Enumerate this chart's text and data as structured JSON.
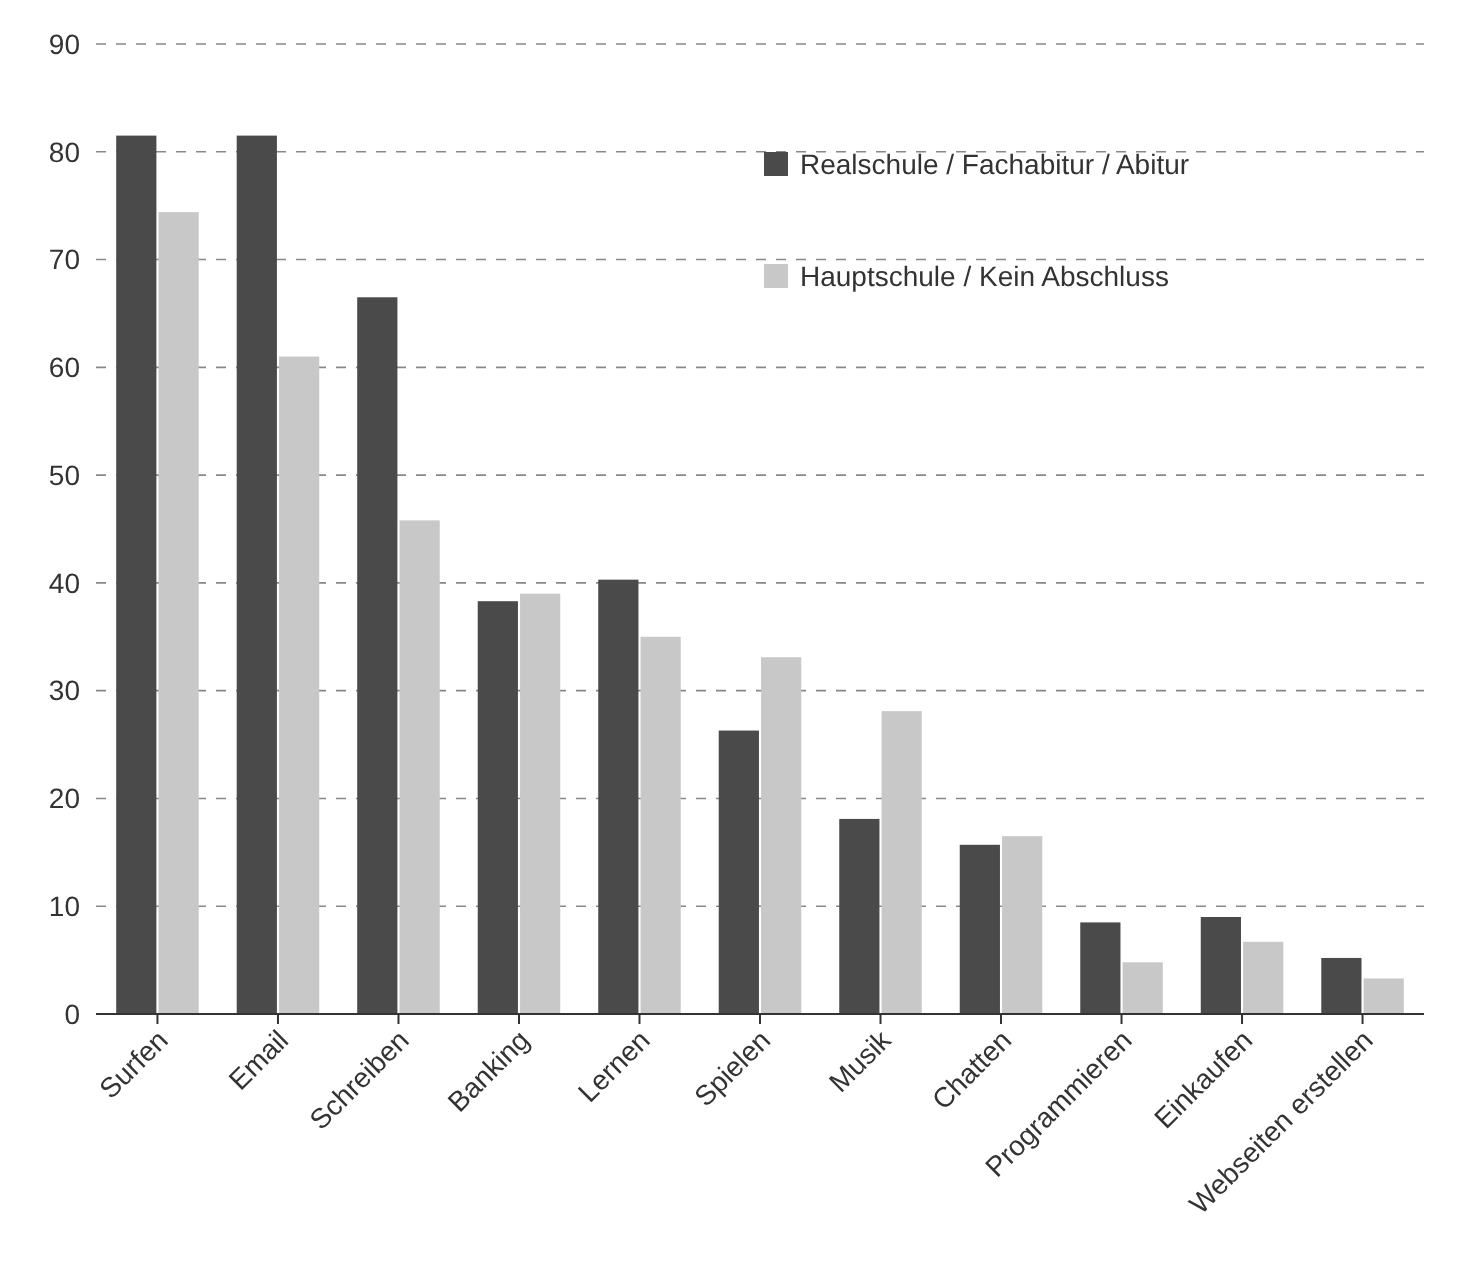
{
  "chart_data": {
    "type": "bar",
    "categories": [
      "Surfen",
      "Email",
      "Schreiben",
      "Banking",
      "Lernen",
      "Spielen",
      "Musik",
      "Chatten",
      "Programmieren",
      "Einkaufen",
      "Webseiten erstellen"
    ],
    "series": [
      {
        "name": "Realschule / Fachabitur / Abitur",
        "color": "#4a4a4a",
        "values": [
          81.5,
          81.5,
          66.5,
          38.3,
          40.3,
          26.3,
          18.1,
          15.7,
          8.5,
          9.0,
          5.2
        ]
      },
      {
        "name": "Hauptschule / Kein Abschluss",
        "color": "#c8c8c8",
        "values": [
          74.4,
          61,
          45.8,
          39,
          35,
          33.1,
          28.1,
          16.5,
          4.8,
          6.7,
          3.3
        ]
      }
    ],
    "ylim": [
      0,
      90
    ],
    "yticks": [
      0,
      10,
      20,
      30,
      40,
      50,
      60,
      70,
      80,
      90
    ],
    "grid": "y",
    "legend": "top right"
  }
}
